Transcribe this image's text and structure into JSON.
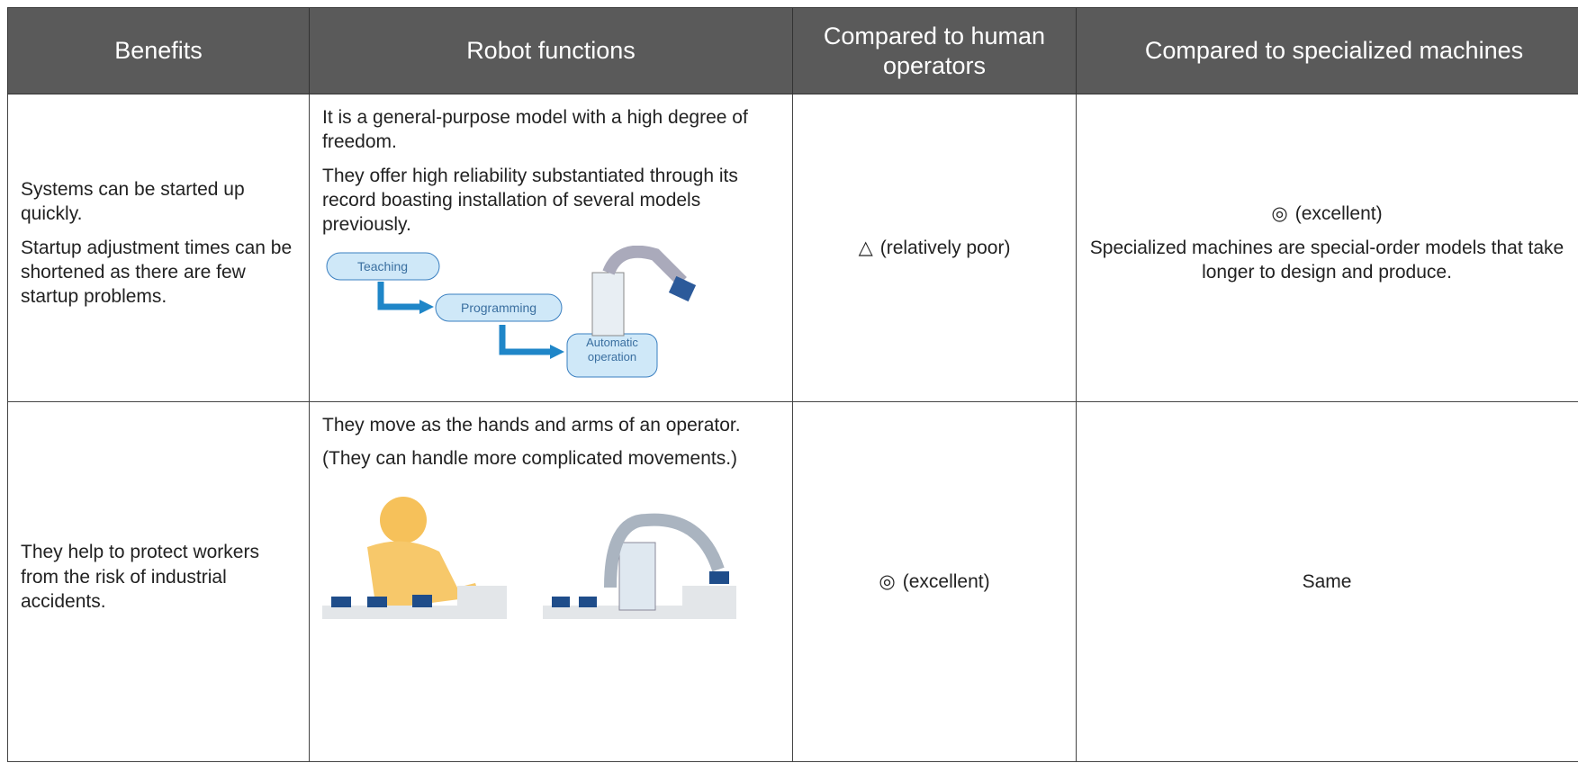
{
  "header": {
    "columns": [
      "Benefits",
      "Robot functions",
      "Compared to human operators",
      "Compared to specialized machines"
    ]
  },
  "rows": [
    {
      "benefits": [
        "Systems can be started up quickly.",
        "Startup adjustment times can be shortened as there are few startup problems."
      ],
      "robot_functions": [
        "It is a general-purpose model with a high degree of freedom.",
        "They offer high reliability substantiated through its record boasting installation of several models previously."
      ],
      "diagram": {
        "steps": [
          "Teaching",
          "Programming",
          "Automatic operation"
        ]
      },
      "human": {
        "symbol": "△",
        "text": "(relatively poor)"
      },
      "specialized": {
        "symbol": "◎",
        "text": "(excellent)",
        "note": "Specialized machines are special-order models that take longer to design and produce."
      }
    },
    {
      "benefits": [
        "They help to protect workers from the risk of industrial accidents."
      ],
      "robot_functions": [
        "They move as the hands and arms of an operator.",
        "(They can handle more complicated movements.)"
      ],
      "human": {
        "symbol": "◎",
        "text": "(excellent)"
      },
      "specialized": {
        "text": "Same"
      }
    }
  ]
}
